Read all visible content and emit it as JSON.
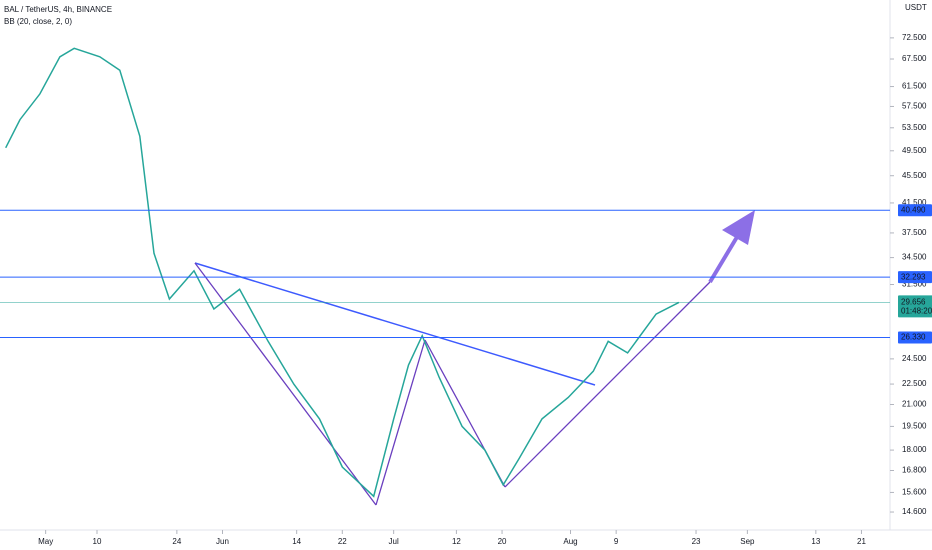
{
  "chart_data": {
    "type": "line",
    "title": "BAL / TetherUS, 4h, BINANCE",
    "indicator": "BB (20, close, 2, 0)",
    "currency": "USDT",
    "log_scale": true,
    "grid": false,
    "ylim": [
      13.74,
      82.4
    ],
    "yticks": [
      {
        "value": 72.5,
        "label": "72.500"
      },
      {
        "value": 67.5,
        "label": "67.500"
      },
      {
        "value": 61.5,
        "label": "61.500"
      },
      {
        "value": 57.5,
        "label": "57.500"
      },
      {
        "value": 53.5,
        "label": "53.500"
      },
      {
        "value": 49.5,
        "label": "49.500"
      },
      {
        "value": 45.5,
        "label": "45.500"
      },
      {
        "value": 41.5,
        "label": "41.500"
      },
      {
        "value": 37.5,
        "label": "37.500"
      },
      {
        "value": 34.5,
        "label": "34.500"
      },
      {
        "value": 31.5,
        "label": "31.500"
      },
      {
        "value": 24.5,
        "label": "24.500"
      },
      {
        "value": 22.5,
        "label": "22.500"
      },
      {
        "value": 21,
        "label": "21.000"
      },
      {
        "value": 19.5,
        "label": "19.500"
      },
      {
        "value": 18,
        "label": "18.000"
      },
      {
        "value": 16.8,
        "label": "16.800"
      },
      {
        "value": 15.6,
        "label": "15.600"
      },
      {
        "value": 14.6,
        "label": "14.600"
      }
    ],
    "xlim": [
      -8,
      148
    ],
    "xticks": [
      {
        "value": 0,
        "label": "May"
      },
      {
        "value": 9,
        "label": "10"
      },
      {
        "value": 23,
        "label": "24"
      },
      {
        "value": 31,
        "label": "Jun"
      },
      {
        "value": 44,
        "label": "14"
      },
      {
        "value": 52,
        "label": "22"
      },
      {
        "value": 61,
        "label": "Jul"
      },
      {
        "value": 72,
        "label": "12"
      },
      {
        "value": 80,
        "label": "20"
      },
      {
        "value": 92,
        "label": "Aug"
      },
      {
        "value": 100,
        "label": "9"
      },
      {
        "value": 114,
        "label": "23"
      },
      {
        "value": 123,
        "label": "Sep"
      },
      {
        "value": 135,
        "label": "13"
      },
      {
        "value": 143,
        "label": "21"
      }
    ],
    "x": [
      -7,
      -4.5,
      -1,
      2.5,
      5,
      9.5,
      13,
      16.5,
      19,
      21.7,
      26,
      29.5,
      34,
      39,
      43.5,
      48,
      52,
      57.5,
      61,
      63.6,
      66,
      69,
      73,
      77,
      80.2,
      83,
      87,
      91.6,
      96,
      98.6,
      102,
      107,
      111
    ],
    "series": [
      {
        "name": "BAL / TetherUS",
        "color": "#26a69a",
        "values": [
          50,
          55,
          60,
          68,
          70,
          68,
          65,
          52,
          35,
          30,
          33,
          29,
          31,
          26,
          22.5,
          20,
          17,
          15.4,
          20,
          24,
          26.5,
          23,
          19.5,
          18,
          16,
          17.5,
          20,
          21.5,
          23.5,
          26,
          25,
          28.5,
          29.656
        ]
      }
    ],
    "levels": [
      {
        "value": 40.49,
        "label": "40.490"
      },
      {
        "value": 32.293,
        "label": "32.293"
      },
      {
        "value": 26.33,
        "label": "26.330"
      }
    ],
    "last_price": {
      "value": 29.656,
      "label": "29.656",
      "countdown": "01:48:20",
      "color": "#26a69a"
    },
    "level_color": "#2962ff"
  }
}
